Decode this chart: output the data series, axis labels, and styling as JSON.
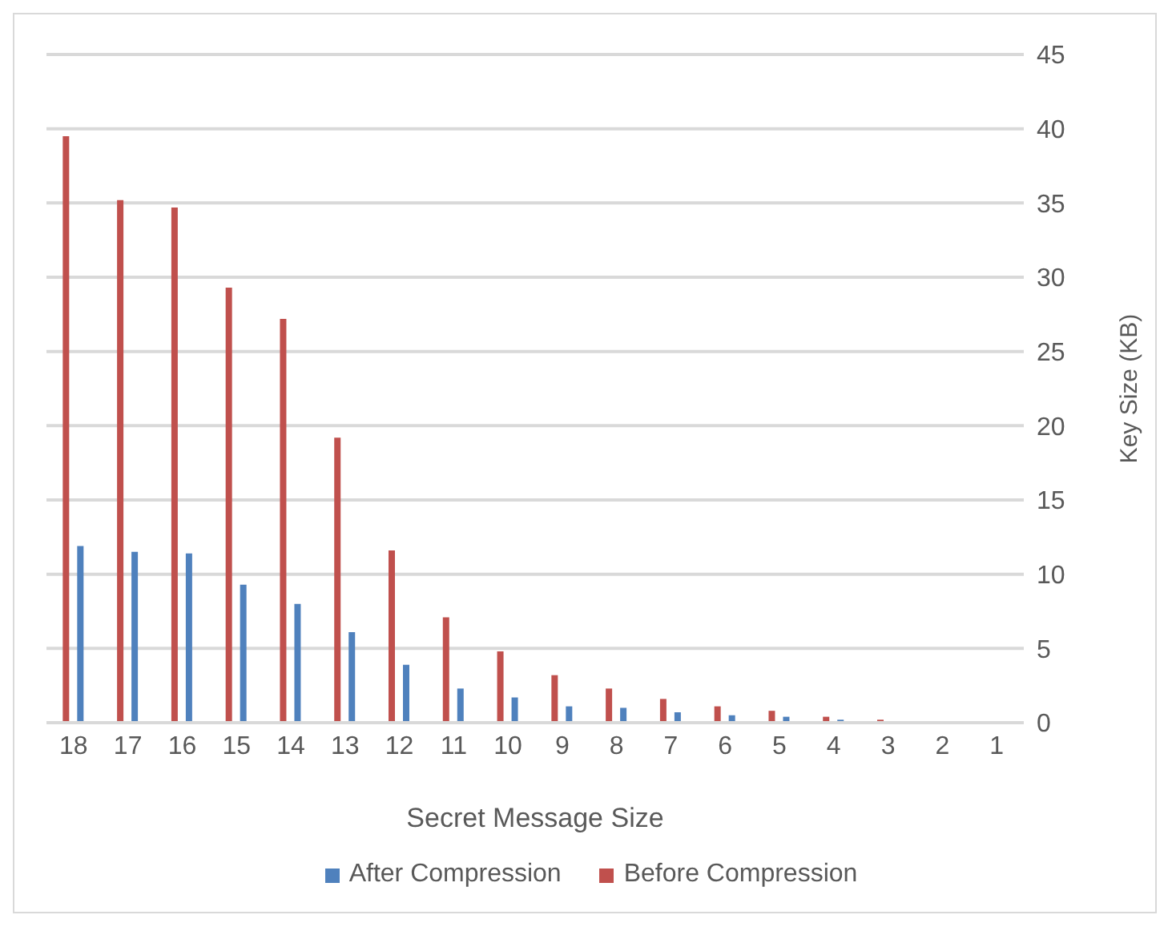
{
  "chart_data": {
    "type": "bar",
    "xlabel": "Secret Message Size",
    "ylabel": "Key Size (KB)",
    "categories": [
      "18",
      "17",
      "16",
      "15",
      "14",
      "13",
      "12",
      "11",
      "10",
      "9",
      "8",
      "7",
      "6",
      "5",
      "4",
      "3",
      "2",
      "1"
    ],
    "series": [
      {
        "name": "Before Compression",
        "color": "#c0504d",
        "values": [
          39.5,
          35.2,
          34.7,
          29.3,
          27.2,
          19.2,
          11.6,
          7.1,
          4.8,
          3.2,
          2.3,
          1.6,
          1.1,
          0.8,
          0.4,
          0.2,
          0,
          0
        ]
      },
      {
        "name": "After Compression",
        "color": "#4f81bd",
        "values": [
          11.9,
          11.5,
          11.4,
          9.3,
          8.0,
          6.1,
          3.9,
          2.3,
          1.7,
          1.1,
          1.0,
          0.7,
          0.5,
          0.4,
          0.2,
          null,
          0,
          0
        ]
      }
    ],
    "ylim": [
      0,
      45
    ],
    "yticks": [
      0,
      5,
      10,
      15,
      20,
      25,
      30,
      35,
      40,
      45
    ],
    "grid": "y",
    "legend": "bottom"
  }
}
